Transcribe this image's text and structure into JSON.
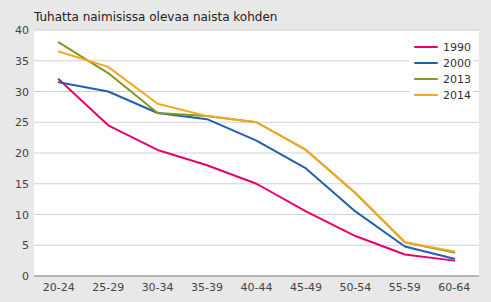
{
  "chart_data": {
    "type": "line",
    "title": "Tuhatta naimisissa olevaa naista kohden",
    "categories": [
      "20-24",
      "25-29",
      "30-34",
      "35-39",
      "40-44",
      "45-49",
      "50-54",
      "55-59",
      "60-64"
    ],
    "series": [
      {
        "name": "1990",
        "color": "#e8006e",
        "values": [
          32,
          24.5,
          20.5,
          18,
          15,
          10.5,
          6.5,
          3.5,
          2.5
        ]
      },
      {
        "name": "2000",
        "color": "#2060b0",
        "values": [
          31.5,
          30,
          26.5,
          25.5,
          22,
          17.5,
          10.5,
          4.8,
          2.8
        ]
      },
      {
        "name": "2013",
        "color": "#7f9a1e",
        "values": [
          38,
          33,
          26.5,
          26,
          25,
          20.5,
          13.5,
          5.5,
          3.8
        ]
      },
      {
        "name": "2014",
        "color": "#f5a623",
        "values": [
          36.5,
          34,
          28,
          26,
          25,
          20.5,
          13.5,
          5.5,
          4.0
        ]
      }
    ],
    "ylim": [
      0,
      40
    ],
    "yticks": [
      0,
      5,
      10,
      15,
      20,
      25,
      30,
      35,
      40
    ],
    "grid": true,
    "legend": "upper right"
  }
}
